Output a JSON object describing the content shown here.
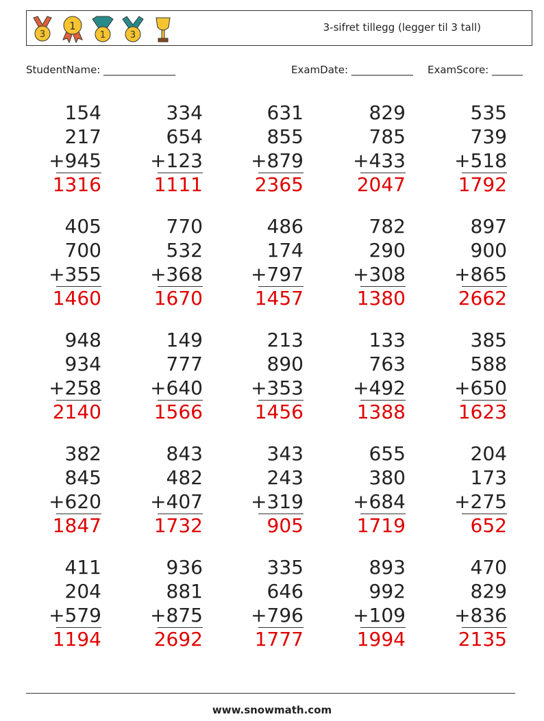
{
  "header": {
    "title": "3-sifret tillegg (legger til 3 tall)",
    "icons": [
      "medal-3-red-ribbon-icon",
      "medal-1-rosette-icon",
      "medal-1-teal-ribbon-icon",
      "medal-3-teal-ribbon-icon",
      "trophy-cup-icon"
    ]
  },
  "fields": {
    "student_name": "StudentName: ______________",
    "exam_date": "ExamDate: ____________",
    "exam_score": "ExamScore: ______"
  },
  "problems": [
    [
      [
        "154",
        "217",
        "+945",
        "1316"
      ],
      [
        "334",
        "654",
        "+123",
        "1111"
      ],
      [
        "631",
        "855",
        "+879",
        "2365"
      ],
      [
        "829",
        "785",
        "+433",
        "2047"
      ],
      [
        "535",
        "739",
        "+518",
        "1792"
      ]
    ],
    [
      [
        "405",
        "700",
        "+355",
        "1460"
      ],
      [
        "770",
        "532",
        "+368",
        "1670"
      ],
      [
        "486",
        "174",
        "+797",
        "1457"
      ],
      [
        "782",
        "290",
        "+308",
        "1380"
      ],
      [
        "897",
        "900",
        "+865",
        "2662"
      ]
    ],
    [
      [
        "948",
        "934",
        "+258",
        "2140"
      ],
      [
        "149",
        "777",
        "+640",
        "1566"
      ],
      [
        "213",
        "890",
        "+353",
        "1456"
      ],
      [
        "133",
        "763",
        "+492",
        "1388"
      ],
      [
        "385",
        "588",
        "+650",
        "1623"
      ]
    ],
    [
      [
        "382",
        "845",
        "+620",
        "1847"
      ],
      [
        "843",
        "482",
        "+407",
        "1732"
      ],
      [
        "343",
        "243",
        "+319",
        "905"
      ],
      [
        "655",
        "380",
        "+684",
        "1719"
      ],
      [
        "204",
        "173",
        "+275",
        "652"
      ]
    ],
    [
      [
        "411",
        "204",
        "+579",
        "1194"
      ],
      [
        "936",
        "881",
        "+875",
        "2692"
      ],
      [
        "335",
        "646",
        "+796",
        "1777"
      ],
      [
        "893",
        "992",
        "+109",
        "1994"
      ],
      [
        "470",
        "829",
        "+836",
        "2135"
      ]
    ]
  ],
  "colors": {
    "answer": "#e00000",
    "text": "#222222"
  },
  "footer": {
    "site": "www.snowmath.com"
  }
}
